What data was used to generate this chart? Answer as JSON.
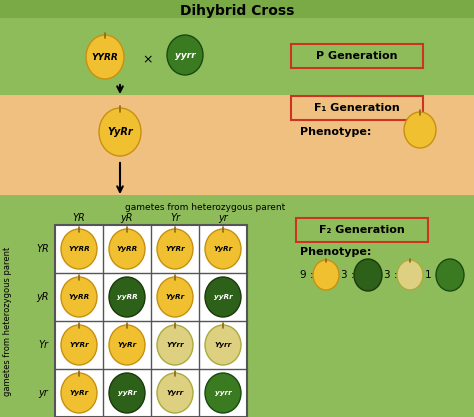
{
  "title": "Dihybrid Cross",
  "bg_green": "#8fbc5a",
  "bg_orange": "#f0c080",
  "title_bar": "#7aaa45",
  "p_gen_label": "P Generation",
  "f1_gen_label": "F₁ Generation",
  "f2_gen_label": "F₂ Generation",
  "phenotype_label": "Phenotype:",
  "gametes_top": "gametes from heterozygous parent",
  "gametes_side": "gametes from heterozygous parent",
  "col_headers": [
    "YR",
    "yR",
    "Yr",
    "yr"
  ],
  "row_headers": [
    "YR",
    "yR",
    "Yr",
    "yr"
  ],
  "grid_labels": [
    [
      "YYRR",
      "YyRR",
      "YYRr",
      "YyRr"
    ],
    [
      "YyRR",
      "yyRR",
      "YyRr",
      "yyRr"
    ],
    [
      "YYRr",
      "YyRr",
      "YYrr",
      "Yyrr"
    ],
    [
      "YyRr",
      "yyRr",
      "Yyrr",
      "yyrr"
    ]
  ],
  "grid_colors": [
    [
      "yellow",
      "yellow",
      "yellow",
      "yellow"
    ],
    [
      "yellow",
      "dark_green",
      "yellow",
      "dark_green"
    ],
    [
      "yellow",
      "yellow",
      "pale_yellow",
      "pale_yellow"
    ],
    [
      "yellow",
      "dark_green",
      "pale_yellow",
      "green"
    ]
  ],
  "p1_label": "YYRR",
  "p2_label": "yyrr",
  "f1_label": "YyRr",
  "label_box_color": "#cc3322",
  "grid_line_color": "#555555"
}
